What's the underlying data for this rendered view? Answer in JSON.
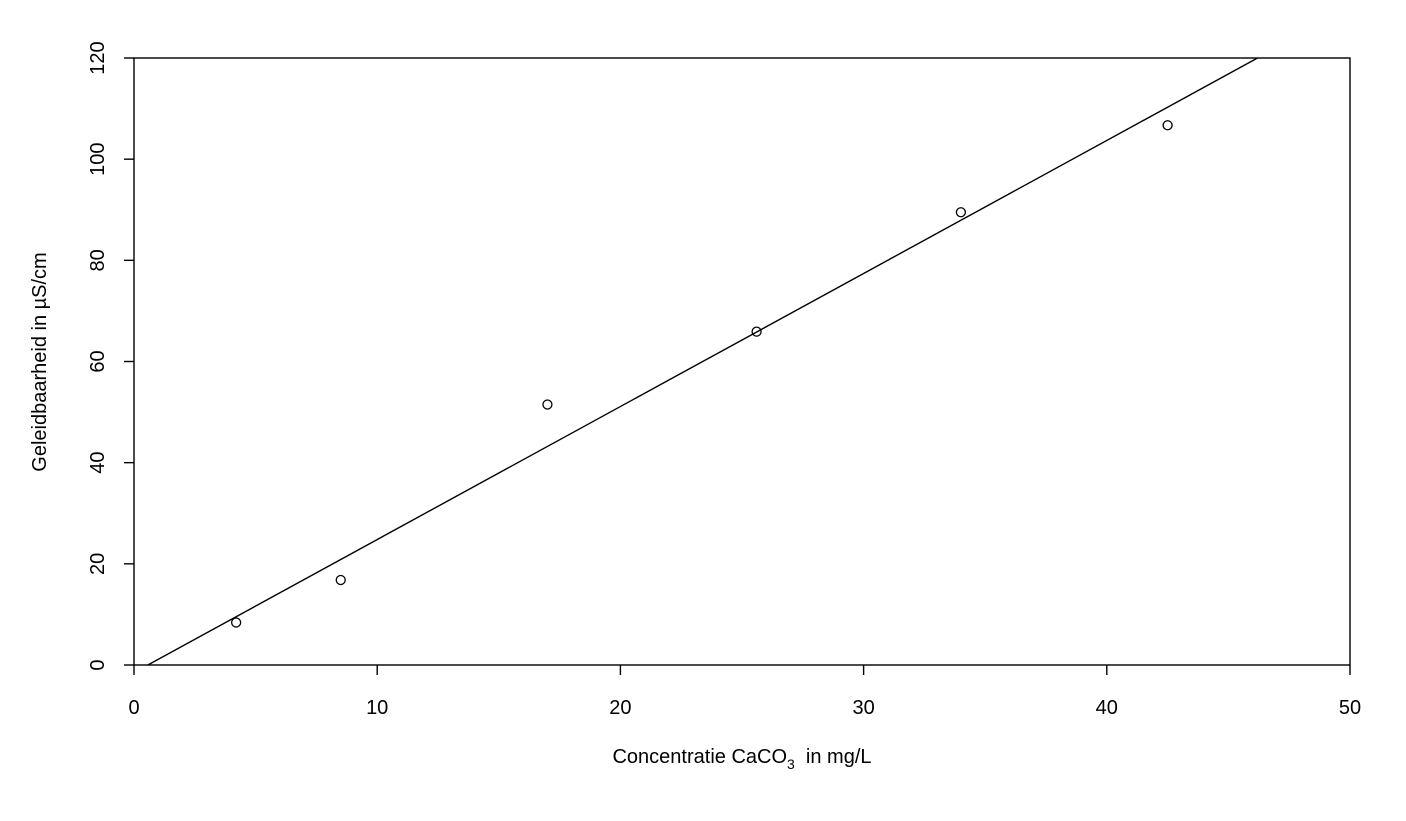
{
  "chart_data": {
    "type": "scatter",
    "title": "",
    "xlabel": "Concentratie CaCO3 in mg/L",
    "xlabel_parts": {
      "before": "Concentratie CaCO",
      "subscript": "3",
      "after": "  in mg/L"
    },
    "ylabel": "Geleidbaarheid in µS/cm",
    "xlim": [
      0,
      50
    ],
    "ylim": [
      0,
      120
    ],
    "x_ticks": [
      0,
      10,
      20,
      30,
      40,
      50
    ],
    "y_ticks": [
      0,
      20,
      40,
      60,
      80,
      100,
      120
    ],
    "grid": false,
    "legend": "none",
    "series": [
      {
        "points": [
          {
            "x": 4.2,
            "y": 8.4
          },
          {
            "x": 8.5,
            "y": 16.8
          },
          {
            "x": 17.0,
            "y": 51.5
          },
          {
            "x": 25.6,
            "y": 65.9
          },
          {
            "x": 34.0,
            "y": 89.5
          },
          {
            "x": 42.5,
            "y": 106.7
          }
        ]
      }
    ],
    "fit_line": {
      "slope": 2.63,
      "intercept": -1.5
    },
    "colors": {
      "points": "#000000",
      "line": "#000000",
      "axes": "#000000"
    }
  }
}
